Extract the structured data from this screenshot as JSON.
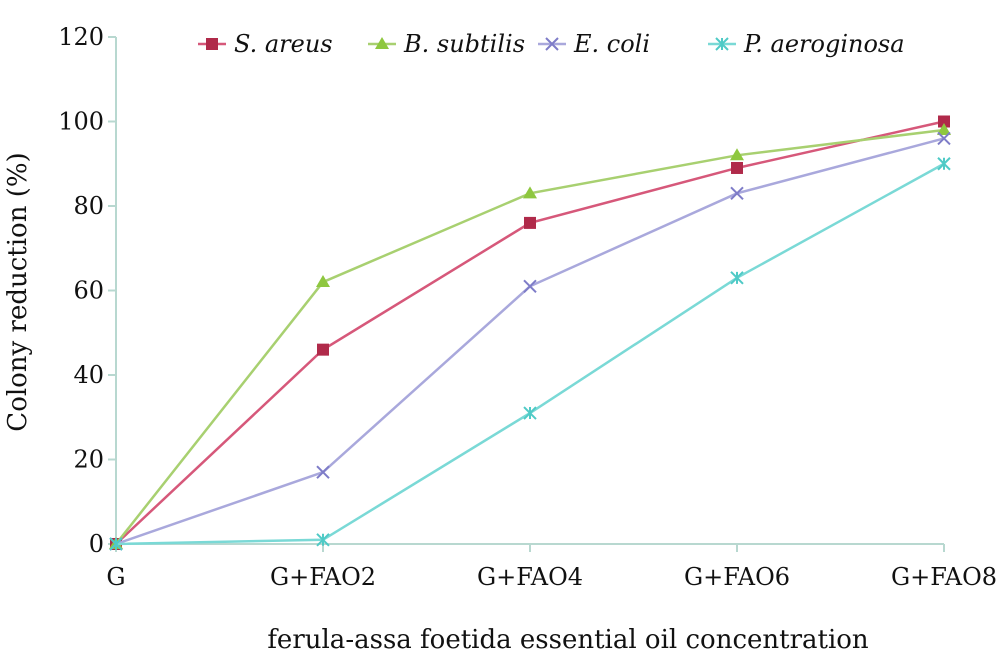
{
  "chart_data": {
    "type": "line",
    "title": "",
    "xlabel": "ferula-assa foetida essential oil concentration",
    "ylabel": "Colony reduction (%)",
    "categories": [
      "G",
      "G+FAO2",
      "G+FAO4",
      "G+FAO6",
      "G+FAO8"
    ],
    "ylim": [
      0,
      120
    ],
    "yticks": [
      "0",
      "20",
      "40",
      "60",
      "80",
      "100",
      "120"
    ],
    "grid": false,
    "legend_position": "top",
    "series": [
      {
        "name": "S. areus",
        "values": [
          0,
          46,
          76,
          89,
          100
        ],
        "color": "#d6587a",
        "marker_color": "#b02a4a",
        "marker": "square"
      },
      {
        "name": "B. subtilis",
        "values": [
          0,
          62,
          83,
          92,
          98
        ],
        "color": "#a8d070",
        "marker_color": "#8ec73f",
        "marker": "triangle"
      },
      {
        "name": "E. coli",
        "values": [
          0,
          17,
          61,
          83,
          96
        ],
        "color": "#a9a8dc",
        "marker_color": "#7e7cc8",
        "marker": "x"
      },
      {
        "name": "P. aeroginosa",
        "values": [
          0,
          1,
          31,
          63,
          90
        ],
        "color": "#7ad9d6",
        "marker_color": "#4fcac6",
        "marker": "star"
      }
    ]
  }
}
